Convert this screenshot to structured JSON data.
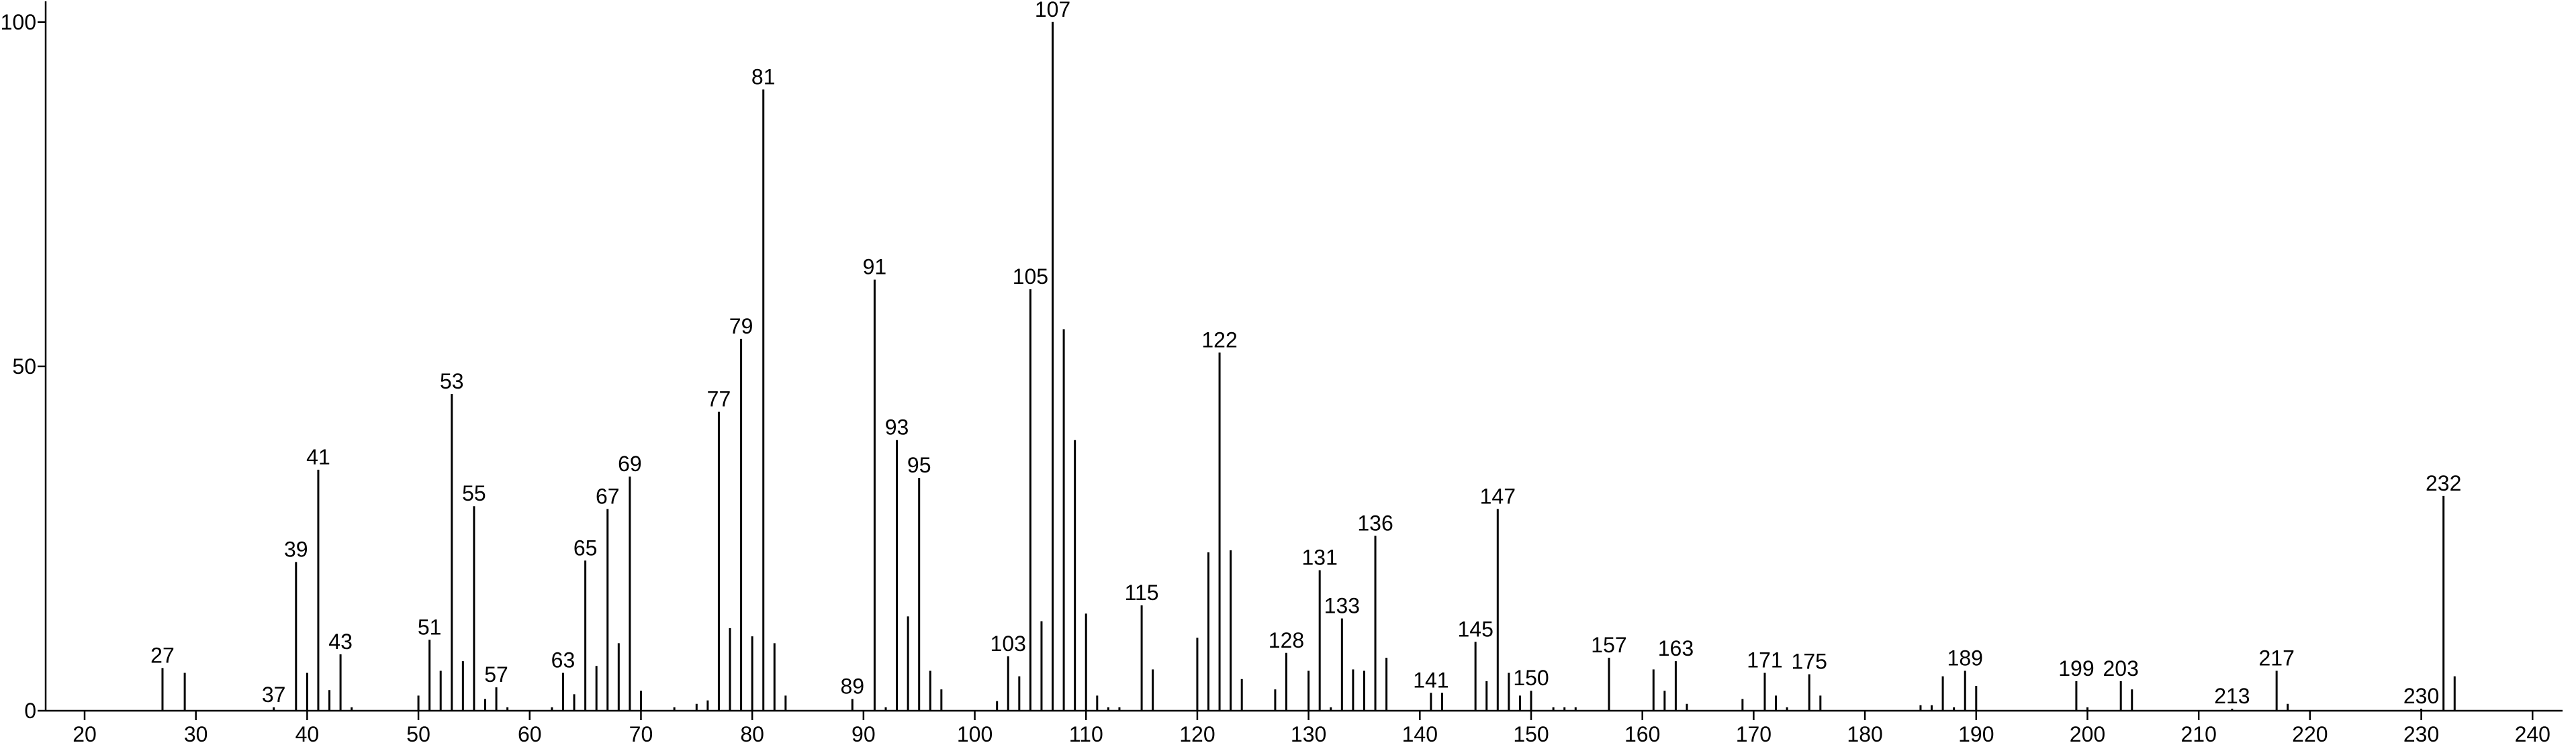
{
  "chart_data": {
    "type": "stick",
    "x": [
      27,
      29,
      37,
      39,
      40,
      41,
      42,
      43,
      44,
      50,
      51,
      52,
      53,
      54,
      55,
      56,
      57,
      58,
      62,
      63,
      64,
      65,
      66,
      67,
      68,
      69,
      70,
      73,
      75,
      76,
      77,
      78,
      79,
      80,
      81,
      82,
      83,
      89,
      91,
      92,
      93,
      94,
      95,
      96,
      97,
      102,
      103,
      104,
      105,
      106,
      107,
      108,
      109,
      110,
      111,
      112,
      113,
      115,
      116,
      120,
      121,
      122,
      123,
      124,
      127,
      128,
      130,
      131,
      132,
      133,
      134,
      135,
      136,
      137,
      141,
      142,
      145,
      146,
      147,
      148,
      149,
      150,
      152,
      153,
      154,
      157,
      161,
      162,
      163,
      164,
      169,
      171,
      172,
      173,
      175,
      176,
      185,
      186,
      187,
      188,
      189,
      190,
      199,
      200,
      203,
      204,
      213,
      217,
      218,
      230,
      232,
      233
    ],
    "values": [
      6.2,
      5.5,
      0.5,
      21.6,
      5.5,
      35,
      3,
      8.2,
      0.5,
      2.2,
      10.3,
      5.8,
      46,
      7.2,
      29.7,
      1.7,
      3.4,
      0.5,
      0.5,
      5.5,
      2.4,
      21.8,
      6.5,
      29.3,
      9.8,
      34,
      2.9,
      0.5,
      1,
      1.5,
      43.4,
      12,
      54,
      10.8,
      90.2,
      9.8,
      2.2,
      1.7,
      62.6,
      0.5,
      39.3,
      13.7,
      33.8,
      5.8,
      3.1,
      1.4,
      7.9,
      5,
      61.2,
      13,
      100,
      55.4,
      39.3,
      14.1,
      2.2,
      0.5,
      0.5,
      15.3,
      6,
      10.6,
      23,
      52,
      23.3,
      4.6,
      3.1,
      8.4,
      5.8,
      20.4,
      0.5,
      13.4,
      6,
      5.8,
      25.4,
      7.7,
      2.6,
      2.6,
      10,
      4.3,
      29.3,
      5.5,
      2.2,
      2.9,
      0.5,
      0.5,
      0.5,
      7.7,
      6,
      2.9,
      7.2,
      1,
      1.7,
      5.5,
      2.2,
      0.5,
      5.3,
      2.2,
      0.8,
      0.8,
      5,
      0.5,
      5.8,
      3.6,
      4.3,
      0.5,
      4.3,
      3.1,
      0.3,
      5.8,
      1,
      0.3,
      31.2,
      5
    ],
    "labeled": [
      true,
      false,
      true,
      true,
      false,
      true,
      false,
      true,
      false,
      false,
      true,
      false,
      true,
      false,
      true,
      false,
      true,
      false,
      false,
      true,
      false,
      true,
      false,
      true,
      false,
      true,
      false,
      false,
      false,
      false,
      true,
      false,
      true,
      false,
      true,
      false,
      false,
      true,
      true,
      false,
      true,
      false,
      true,
      false,
      false,
      false,
      true,
      false,
      true,
      false,
      true,
      false,
      false,
      false,
      false,
      false,
      false,
      true,
      false,
      false,
      false,
      true,
      false,
      false,
      false,
      true,
      false,
      true,
      false,
      true,
      false,
      false,
      true,
      false,
      true,
      false,
      true,
      false,
      true,
      false,
      false,
      true,
      false,
      false,
      false,
      true,
      false,
      false,
      true,
      false,
      false,
      true,
      false,
      false,
      true,
      false,
      false,
      false,
      false,
      false,
      true,
      false,
      true,
      false,
      true,
      false,
      true,
      true,
      false,
      true,
      true,
      false
    ],
    "color": "#000000",
    "xlim": [
      16.5,
      242.7
    ],
    "ylim": [
      0,
      103
    ],
    "xticks": [
      20,
      30,
      40,
      50,
      60,
      70,
      80,
      90,
      100,
      110,
      120,
      130,
      140,
      150,
      160,
      170,
      180,
      190,
      200,
      210,
      220,
      230,
      240
    ],
    "yticks": [
      0,
      50,
      100
    ]
  }
}
